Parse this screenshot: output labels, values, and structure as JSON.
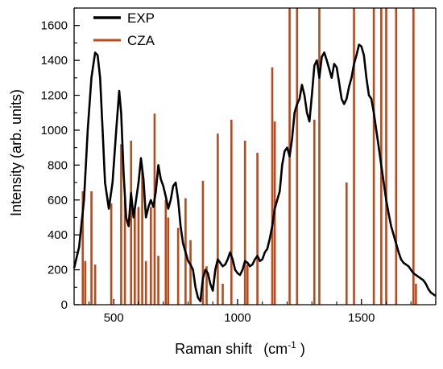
{
  "chart_data": {
    "type": "line",
    "title": "",
    "xlabel": "Raman shift",
    "xlabel_unit": "(cm",
    "xlabel_unit_sup": "-1",
    "xlabel_unit_close": " )",
    "ylabel": "Intensity (arb. units)",
    "xlim": [
      340,
      1800
    ],
    "ylim": [
      0,
      1700
    ],
    "xticks": [
      500,
      1000,
      1500
    ],
    "yticks": [
      0,
      200,
      400,
      600,
      800,
      1000,
      1200,
      1400,
      1600
    ],
    "xtick_labels": [
      "500",
      "1000",
      "1500"
    ],
    "ytick_labels": [
      "0",
      "200",
      "400",
      "600",
      "800",
      "1000",
      "1200",
      "1400",
      "1600"
    ],
    "grid": false,
    "legend_position": "top-left",
    "series": [
      {
        "name": "EXP",
        "style": "line",
        "color": "#000000",
        "x": [
          340,
          360,
          380,
          395,
          410,
          425,
          435,
          445,
          455,
          465,
          480,
          495,
          510,
          522,
          530,
          540,
          550,
          560,
          570,
          580,
          590,
          600,
          610,
          620,
          630,
          640,
          650,
          660,
          670,
          680,
          690,
          700,
          710,
          720,
          730,
          740,
          750,
          760,
          770,
          780,
          790,
          800,
          810,
          820,
          830,
          840,
          850,
          860,
          870,
          880,
          890,
          900,
          910,
          920,
          930,
          940,
          950,
          960,
          970,
          980,
          990,
          1000,
          1010,
          1020,
          1030,
          1040,
          1050,
          1060,
          1070,
          1080,
          1090,
          1100,
          1110,
          1120,
          1130,
          1140,
          1150,
          1160,
          1170,
          1180,
          1190,
          1200,
          1210,
          1220,
          1230,
          1240,
          1250,
          1260,
          1270,
          1280,
          1290,
          1300,
          1310,
          1320,
          1330,
          1340,
          1350,
          1360,
          1370,
          1380,
          1390,
          1400,
          1410,
          1420,
          1430,
          1440,
          1450,
          1460,
          1470,
          1480,
          1490,
          1500,
          1510,
          1520,
          1530,
          1540,
          1550,
          1560,
          1570,
          1580,
          1590,
          1600,
          1610,
          1620,
          1630,
          1640,
          1650,
          1660,
          1670,
          1680,
          1690,
          1700,
          1710,
          1720,
          1730,
          1740,
          1750,
          1760,
          1770,
          1780,
          1790,
          1800
        ],
        "y": [
          210,
          330,
          600,
          1000,
          1300,
          1445,
          1430,
          1300,
          1000,
          700,
          550,
          700,
          1000,
          1225,
          1100,
          750,
          500,
          450,
          640,
          500,
          600,
          700,
          840,
          720,
          500,
          560,
          600,
          560,
          650,
          800,
          720,
          680,
          620,
          550,
          600,
          680,
          700,
          600,
          450,
          350,
          300,
          250,
          230,
          200,
          100,
          40,
          20,
          150,
          200,
          180,
          120,
          80,
          200,
          260,
          240,
          220,
          230,
          260,
          300,
          260,
          200,
          180,
          170,
          200,
          250,
          240,
          220,
          230,
          260,
          280,
          250,
          260,
          300,
          320,
          380,
          450,
          550,
          600,
          650,
          800,
          880,
          900,
          850,
          950,
          1100,
          1150,
          1180,
          1260,
          1200,
          1100,
          1050,
          1200,
          1370,
          1400,
          1300,
          1420,
          1445,
          1400,
          1350,
          1300,
          1380,
          1360,
          1270,
          1180,
          1150,
          1180,
          1250,
          1300,
          1380,
          1430,
          1490,
          1480,
          1430,
          1300,
          1200,
          1180,
          1100,
          1000,
          900,
          800,
          700,
          600,
          520,
          450,
          400,
          350,
          300,
          260,
          240,
          230,
          220,
          200,
          180,
          170,
          160,
          150,
          140,
          120,
          90,
          70,
          60,
          50
        ]
      },
      {
        "name": "CZA",
        "style": "stick",
        "color": "#b84a1c",
        "x": [
          375,
          385,
          410,
          425,
          490,
          530,
          545,
          570,
          585,
          600,
          615,
          630,
          650,
          665,
          680,
          710,
          720,
          760,
          790,
          810,
          860,
          875,
          920,
          940,
          975,
          1030,
          1040,
          1080,
          1140,
          1150,
          1210,
          1240,
          1310,
          1330,
          1440,
          1470,
          1550,
          1580,
          1600,
          1640,
          1710,
          1720
        ],
        "values": [
          650,
          250,
          650,
          230,
          580,
          920,
          600,
          940,
          540,
          560,
          780,
          250,
          560,
          1095,
          280,
          600,
          500,
          440,
          610,
          370,
          710,
          220,
          980,
          120,
          1060,
          940,
          230,
          870,
          1360,
          1050,
          1700,
          1700,
          1060,
          1700,
          700,
          1700,
          1700,
          1700,
          1700,
          1700,
          1700,
          120
        ]
      }
    ]
  }
}
